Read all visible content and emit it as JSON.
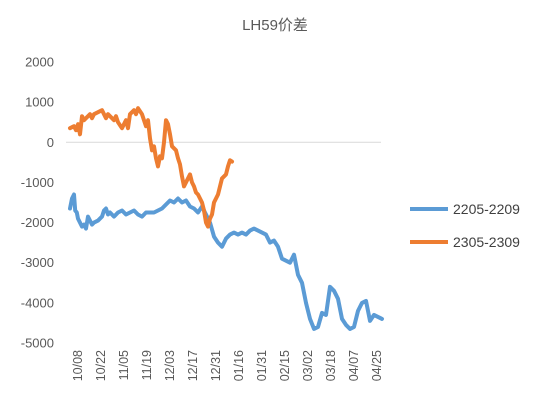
{
  "chart_data": {
    "type": "line",
    "title": "LH59价差",
    "xlabel": "",
    "ylabel": "",
    "ylim": [
      -5000,
      2000
    ],
    "yticks": [
      2000,
      1000,
      0,
      -1000,
      -2000,
      -3000,
      -4000,
      -5000
    ],
    "x_tick_labels": [
      "10/08",
      "10/22",
      "11/05",
      "11/19",
      "12/03",
      "12/17",
      "12/31",
      "01/16",
      "01/31",
      "02/15",
      "03/02",
      "03/18",
      "04/07",
      "04/25"
    ],
    "grid": false,
    "legend_position": "right",
    "series": [
      {
        "name": "2205-2209",
        "color": "#5B9BD5",
        "points": [
          [
            0,
            -1650
          ],
          [
            0.5,
            -1400
          ],
          [
            1,
            -1300
          ],
          [
            1.3,
            -1700
          ],
          [
            1.7,
            -1750
          ],
          [
            2.0,
            -1900
          ],
          [
            2.5,
            -2000
          ],
          [
            3,
            -2100
          ],
          [
            3.5,
            -2050
          ],
          [
            4,
            -2150
          ],
          [
            4.5,
            -1850
          ],
          [
            5,
            -1950
          ],
          [
            5.5,
            -2050
          ],
          [
            6,
            -2000
          ],
          [
            7,
            -1950
          ],
          [
            8,
            -1850
          ],
          [
            8.5,
            -1700
          ],
          [
            9,
            -1650
          ],
          [
            9.5,
            -1800
          ],
          [
            10,
            -1750
          ],
          [
            11,
            -1850
          ],
          [
            12,
            -1750
          ],
          [
            13,
            -1700
          ],
          [
            14,
            -1800
          ],
          [
            15,
            -1750
          ],
          [
            16,
            -1700
          ],
          [
            17,
            -1800
          ],
          [
            18,
            -1850
          ],
          [
            19,
            -1750
          ],
          [
            20,
            -1750
          ],
          [
            21,
            -1750
          ],
          [
            22,
            -1700
          ],
          [
            23,
            -1650
          ],
          [
            24,
            -1550
          ],
          [
            25,
            -1450
          ],
          [
            26,
            -1500
          ],
          [
            27,
            -1400
          ],
          [
            28,
            -1500
          ],
          [
            29,
            -1450
          ],
          [
            30,
            -1600
          ],
          [
            31,
            -1650
          ],
          [
            32,
            -1750
          ],
          [
            33,
            -1600
          ],
          [
            34,
            -1800
          ],
          [
            35,
            -2000
          ],
          [
            36,
            -2350
          ],
          [
            37,
            -2500
          ],
          [
            38,
            -2600
          ],
          [
            39,
            -2400
          ],
          [
            40,
            -2300
          ],
          [
            41,
            -2250
          ],
          [
            42,
            -2300
          ],
          [
            43,
            -2250
          ],
          [
            44,
            -2300
          ],
          [
            45,
            -2200
          ],
          [
            46,
            -2150
          ],
          [
            47,
            -2200
          ],
          [
            48,
            -2250
          ],
          [
            49,
            -2300
          ],
          [
            50,
            -2500
          ],
          [
            51,
            -2450
          ],
          [
            52,
            -2600
          ],
          [
            53,
            -2900
          ],
          [
            54,
            -2950
          ],
          [
            55,
            -3000
          ],
          [
            56,
            -2800
          ],
          [
            57,
            -3300
          ],
          [
            58,
            -3500
          ],
          [
            59,
            -4000
          ],
          [
            60,
            -4400
          ],
          [
            61,
            -4650
          ],
          [
            62,
            -4600
          ],
          [
            63,
            -4250
          ],
          [
            64,
            -4300
          ],
          [
            65,
            -3600
          ],
          [
            66,
            -3700
          ],
          [
            67,
            -3900
          ],
          [
            68,
            -4400
          ],
          [
            69,
            -4550
          ],
          [
            70,
            -4650
          ],
          [
            71,
            -4600
          ],
          [
            72,
            -4200
          ],
          [
            73,
            -4000
          ],
          [
            74,
            -3950
          ],
          [
            75,
            -4450
          ],
          [
            76,
            -4300
          ],
          [
            77,
            -4350
          ],
          [
            78,
            -4400
          ]
        ]
      },
      {
        "name": "2305-2309",
        "color": "#ED7D31",
        "points": [
          [
            0,
            350
          ],
          [
            1,
            400
          ],
          [
            1.5,
            300
          ],
          [
            2,
            450
          ],
          [
            2.5,
            200
          ],
          [
            3,
            650
          ],
          [
            3.5,
            550
          ],
          [
            4,
            600
          ],
          [
            5,
            700
          ],
          [
            5.5,
            600
          ],
          [
            6,
            700
          ],
          [
            7,
            750
          ],
          [
            8,
            800
          ],
          [
            8.5,
            700
          ],
          [
            9,
            600
          ],
          [
            9.5,
            700
          ],
          [
            10,
            650
          ],
          [
            11,
            550
          ],
          [
            11.5,
            650
          ],
          [
            12,
            500
          ],
          [
            13,
            350
          ],
          [
            14,
            550
          ],
          [
            14.5,
            350
          ],
          [
            15,
            700
          ],
          [
            16,
            800
          ],
          [
            16.5,
            700
          ],
          [
            17,
            850
          ],
          [
            18,
            700
          ],
          [
            19,
            400
          ],
          [
            19.5,
            550
          ],
          [
            20,
            100
          ],
          [
            20.5,
            -200
          ],
          [
            21,
            -100
          ],
          [
            21.5,
            -400
          ],
          [
            22,
            -600
          ],
          [
            22.5,
            -350
          ],
          [
            23,
            -400
          ],
          [
            23.5,
            0
          ],
          [
            24,
            550
          ],
          [
            24.5,
            450
          ],
          [
            25,
            200
          ],
          [
            25.5,
            -100
          ],
          [
            26,
            -150
          ],
          [
            26.5,
            -200
          ],
          [
            27,
            -400
          ],
          [
            27.5,
            -550
          ],
          [
            28,
            -850
          ],
          [
            28.5,
            -1100
          ],
          [
            29,
            -1000
          ],
          [
            29.5,
            -900
          ],
          [
            30,
            -800
          ],
          [
            30.5,
            -1000
          ],
          [
            31,
            -1100
          ],
          [
            31.5,
            -1250
          ],
          [
            32,
            -1300
          ],
          [
            32.5,
            -1400
          ],
          [
            33,
            -1500
          ],
          [
            33.5,
            -1700
          ],
          [
            34,
            -2000
          ],
          [
            34.5,
            -2100
          ],
          [
            35,
            -1900
          ],
          [
            35.5,
            -1800
          ],
          [
            36,
            -1500
          ],
          [
            37,
            -1300
          ],
          [
            38,
            -900
          ],
          [
            39,
            -800
          ],
          [
            39.5,
            -600
          ],
          [
            40,
            -450
          ],
          [
            40.5,
            -480
          ]
        ]
      }
    ]
  }
}
